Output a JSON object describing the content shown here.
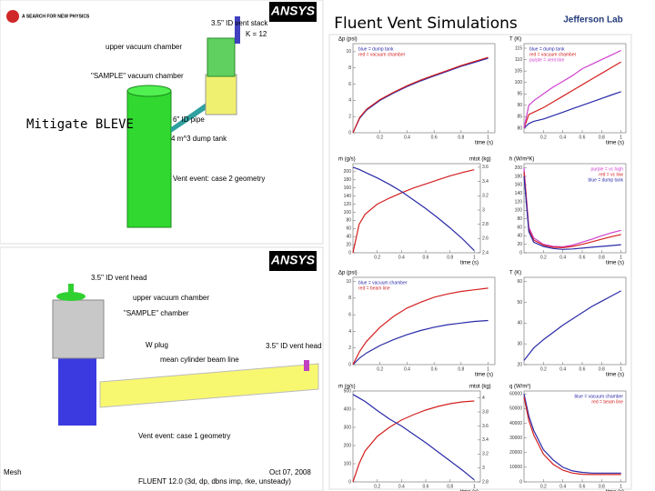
{
  "header": {
    "title": "Fluent Vent Simulations",
    "logo_left": "A SEARCH FOR NEW PHYSICS",
    "logo_ansys": "ANSYS",
    "logo_right": "Jefferson Lab"
  },
  "note": "Mitigate BLEVE",
  "geometry_top": {
    "vent_stack": "3.5\" ID vent stack",
    "k": "K = 12",
    "upper": "upper vacuum chamber",
    "sample": "\"SAMPLE\" vacuum chamber",
    "pipe": "6\" ID pipe",
    "tank": "4 m^3 dump tank",
    "caption": "Vent event: case 2 geometry"
  },
  "geometry_bottom": {
    "logo": "ANSYS",
    "vent_head": "3.5\" ID vent head",
    "upper": "upper vacuum chamber",
    "sample": "\"SAMPLE\" chamber",
    "plug": "W plug",
    "vent_head_2": "3.5\" ID vent head",
    "beam": "mean cylinder beam line",
    "caption": "Vent event: case 1 geometry",
    "mesh": "Mesh",
    "date": "Oct 07, 2008",
    "solver": "FLUENT 12.0 (3d, dp, dbns imp, rke, unsteady)"
  },
  "chart_data": [
    {
      "type": "line",
      "y_label": "Δp (psi)",
      "x_label": "time (s)",
      "legend": "upper left",
      "x": [
        0,
        0.05,
        0.1,
        0.2,
        0.3,
        0.4,
        0.5,
        0.6,
        0.7,
        0.8,
        0.9,
        1.0
      ],
      "xlim": [
        0,
        1.05
      ],
      "xticks": [
        0.2,
        0.4,
        0.6,
        0.8,
        1
      ],
      "ylim": [
        0,
        11
      ],
      "yticks": [
        0,
        2,
        4,
        6,
        8,
        10
      ],
      "series": [
        {
          "name": "blue = dump tank",
          "color": "#2a2aa8",
          "values": [
            0,
            1.8,
            2.8,
            4.0,
            4.9,
            5.7,
            6.4,
            7.0,
            7.6,
            8.2,
            8.7,
            9.2
          ]
        },
        {
          "name": "red = vacuum chamber",
          "color": "#d42020",
          "values": [
            0,
            1.9,
            2.9,
            4.1,
            5.0,
            5.8,
            6.5,
            7.1,
            7.7,
            8.3,
            8.8,
            9.3
          ]
        }
      ]
    },
    {
      "type": "line",
      "y_label": "T (K)",
      "x_label": "time (s)",
      "legend": "upper left",
      "x": [
        0,
        0.05,
        0.1,
        0.2,
        0.3,
        0.4,
        0.5,
        0.6,
        0.7,
        0.8,
        0.9,
        1.0
      ],
      "xlim": [
        0,
        1.05
      ],
      "xticks": [
        0.2,
        0.4,
        0.6,
        0.8,
        1
      ],
      "ylim": [
        78,
        117
      ],
      "yticks": [
        80,
        85,
        90,
        95,
        100,
        105,
        110,
        115
      ],
      "series": [
        {
          "name": "blue = dump tank",
          "color": "#2a2aa8",
          "values": [
            80,
            82,
            83,
            84,
            85.5,
            87,
            88.5,
            90,
            91.5,
            93,
            94.5,
            96
          ]
        },
        {
          "name": "red = vacuum chamber",
          "color": "#d42020",
          "values": [
            80,
            86,
            87,
            89,
            91.5,
            94,
            96.5,
            99,
            101.5,
            104,
            106.5,
            109
          ]
        },
        {
          "name": "purple = vent line",
          "color": "#d040d0",
          "values": [
            80,
            90,
            92,
            95,
            98,
            100.5,
            103,
            106,
            108,
            110,
            112,
            114
          ]
        }
      ]
    },
    {
      "type": "line",
      "y_label": "ṁ (g/s)",
      "y2_label": "mtot (kg)",
      "x_label": "time (s)",
      "x": [
        0,
        0.05,
        0.1,
        0.2,
        0.3,
        0.4,
        0.5,
        0.6,
        0.7,
        0.8,
        0.9,
        1.0
      ],
      "xlim": [
        0,
        1.05
      ],
      "xticks": [
        0.2,
        0.4,
        0.6,
        0.8,
        1
      ],
      "ylim": [
        0,
        220
      ],
      "yticks": [
        0,
        20,
        40,
        60,
        80,
        100,
        120,
        140,
        160,
        180,
        200
      ],
      "y2lim": [
        2.4,
        3.65
      ],
      "y2ticks": [
        2.4,
        2.6,
        2.8,
        3,
        3.2,
        3.4,
        3.6
      ],
      "series": [
        {
          "color": "#d42020",
          "values": [
            0,
            70,
            95,
            120,
            135,
            148,
            160,
            170,
            180,
            190,
            198,
            205
          ]
        },
        {
          "color": "#2a2aa8",
          "axis": "y2",
          "values": [
            3.6,
            3.57,
            3.53,
            3.45,
            3.36,
            3.26,
            3.14,
            3.02,
            2.89,
            2.75,
            2.6,
            2.43
          ]
        }
      ]
    },
    {
      "type": "line",
      "y_label": "h (W/m²K)",
      "x_label": "time (s)",
      "legend": "upper right",
      "x": [
        0,
        0.05,
        0.1,
        0.2,
        0.3,
        0.4,
        0.5,
        0.6,
        0.7,
        0.8,
        0.9,
        1.0
      ],
      "xlim": [
        0,
        1.05
      ],
      "xticks": [
        0.2,
        0.4,
        0.6,
        0.8,
        1
      ],
      "ylim": [
        0,
        210
      ],
      "yticks": [
        0,
        20,
        40,
        60,
        80,
        100,
        120,
        140,
        160,
        180,
        200
      ],
      "series": [
        {
          "name": "purple = vc high",
          "color": "#d040d0",
          "values": [
            200,
            60,
            35,
            20,
            15,
            14,
            18,
            25,
            32,
            40,
            47,
            53
          ]
        },
        {
          "name": "red = vc low",
          "color": "#d42020",
          "values": [
            190,
            55,
            30,
            18,
            13,
            12,
            15,
            20,
            26,
            32,
            38,
            43
          ]
        },
        {
          "name": "blue = dump tank",
          "color": "#2a2aa8",
          "values": [
            180,
            50,
            25,
            15,
            10,
            8,
            9,
            11,
            13,
            15,
            17,
            19
          ]
        }
      ]
    },
    {
      "type": "line",
      "y_label": "Δp (psi)",
      "x_label": "time (s)",
      "legend": "upper left",
      "x": [
        0,
        0.05,
        0.1,
        0.2,
        0.3,
        0.4,
        0.5,
        0.6,
        0.7,
        0.8,
        0.9,
        1.0
      ],
      "xlim": [
        0,
        1.05
      ],
      "xticks": [
        0.2,
        0.4,
        0.6,
        0.8,
        1
      ],
      "ylim": [
        0,
        10.5
      ],
      "yticks": [
        0,
        2,
        4,
        6,
        8,
        10
      ],
      "series": [
        {
          "name": "blue = vacuum chamber",
          "color": "#2a2aa8",
          "values": [
            0,
            0.8,
            1.4,
            2.3,
            3.0,
            3.6,
            4.1,
            4.5,
            4.8,
            5.0,
            5.2,
            5.3
          ]
        },
        {
          "name": "red = beam line",
          "color": "#d42020",
          "values": [
            0,
            1.6,
            2.8,
            4.5,
            5.8,
            6.8,
            7.5,
            8.1,
            8.5,
            8.8,
            9.0,
            9.2
          ]
        }
      ]
    },
    {
      "type": "line",
      "y_label": "T (K)",
      "x_label": "time (s)",
      "x": [
        0,
        0.05,
        0.1,
        0.2,
        0.3,
        0.4,
        0.5,
        0.6,
        0.7,
        0.8,
        0.9,
        1.0
      ],
      "xlim": [
        0,
        1.05
      ],
      "xticks": [
        0.2,
        0.4,
        0.6,
        0.8,
        1
      ],
      "ylim": [
        20,
        62
      ],
      "yticks": [
        20,
        30,
        40,
        50,
        60
      ],
      "series": [
        {
          "color": "#2a2aa8",
          "values": [
            22,
            25,
            28,
            32,
            35.5,
            39,
            42,
            45,
            48,
            50.5,
            53,
            55.5
          ]
        }
      ]
    },
    {
      "type": "line",
      "y_label": "ṁ (g/s)",
      "y2_label": "mtot (kg)",
      "x_label": "time (s)",
      "x": [
        0,
        0.05,
        0.1,
        0.2,
        0.3,
        0.4,
        0.5,
        0.6,
        0.7,
        0.8,
        0.9,
        1.0
      ],
      "xlim": [
        0,
        1.05
      ],
      "xticks": [
        0.2,
        0.4,
        0.6,
        0.8,
        1
      ],
      "ylim": [
        0,
        500
      ],
      "yticks": [
        0,
        100,
        200,
        300,
        400,
        500
      ],
      "y2lim": [
        2.8,
        4.1
      ],
      "y2ticks": [
        2.8,
        3,
        3.2,
        3.4,
        3.6,
        3.8,
        4
      ],
      "series": [
        {
          "color": "#d42020",
          "values": [
            0,
            100,
            170,
            250,
            300,
            340,
            370,
            395,
            415,
            430,
            440,
            445
          ]
        },
        {
          "color": "#2a2aa8",
          "axis": "y2",
          "values": [
            4.05,
            4.0,
            3.95,
            3.82,
            3.7,
            3.6,
            3.48,
            3.36,
            3.23,
            3.1,
            2.97,
            2.83
          ]
        }
      ]
    },
    {
      "type": "line",
      "y_label": "q (W/m²)",
      "x_label": "time (s)",
      "legend": "upper right",
      "x": [
        0,
        0.05,
        0.1,
        0.2,
        0.3,
        0.4,
        0.5,
        0.6,
        0.7,
        0.8,
        0.9,
        1.0
      ],
      "xlim": [
        0,
        1.05
      ],
      "xticks": [
        0.2,
        0.4,
        0.6,
        0.8,
        1
      ],
      "ylim": [
        0,
        62000
      ],
      "yticks": [
        0,
        10000,
        20000,
        30000,
        40000,
        50000,
        60000
      ],
      "series": [
        {
          "name": "blue = vacuum chamber",
          "color": "#2a2aa8",
          "values": [
            60000,
            45000,
            35000,
            22000,
            15000,
            10000,
            7500,
            6500,
            6000,
            6000,
            6000,
            6000
          ]
        },
        {
          "name": "red = beam line",
          "color": "#d42020",
          "values": [
            58000,
            42000,
            32000,
            19000,
            12000,
            8000,
            6000,
            5200,
            5000,
            5000,
            5000,
            5000
          ]
        }
      ]
    }
  ]
}
